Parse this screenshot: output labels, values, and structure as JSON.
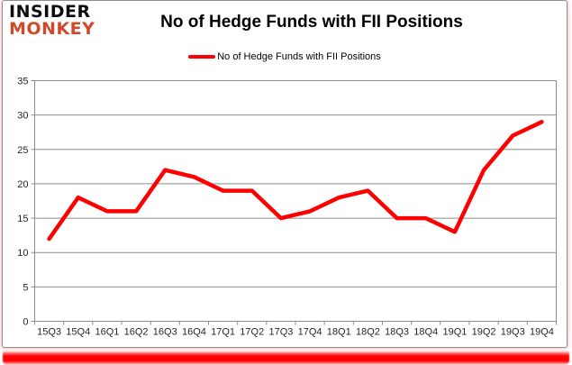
{
  "brand": {
    "line1": "INSIDER",
    "line2": "MONKEY"
  },
  "header": {
    "title": "No of Hedge Funds with FII Positions"
  },
  "legend": {
    "label": "No of Hedge Funds with FII Positions"
  },
  "colors": {
    "series_red": "#fe0000",
    "brand_red": "#cf4a2b",
    "grid_gray": "#8c8c8c",
    "axis_text": "#262626"
  },
  "chart_data": {
    "type": "line",
    "title": "No of Hedge Funds with FII Positions",
    "categories": [
      "15Q3",
      "15Q4",
      "16Q1",
      "16Q2",
      "16Q3",
      "16Q4",
      "17Q1",
      "17Q2",
      "17Q3",
      "17Q4",
      "18Q1",
      "18Q2",
      "18Q3",
      "18Q4",
      "19Q1",
      "19Q2",
      "19Q3",
      "19Q4"
    ],
    "series": [
      {
        "name": "No of Hedge Funds with FII Positions",
        "color": "#fe0000",
        "values": [
          12,
          18,
          16,
          16,
          22,
          21,
          19,
          19,
          15,
          16,
          18,
          19,
          15,
          15,
          13,
          22,
          27,
          29
        ]
      }
    ],
    "ylim": [
      0,
      35
    ],
    "yticks": [
      0,
      5,
      10,
      15,
      20,
      25,
      30,
      35
    ],
    "grid": true,
    "legend_position": "top-center",
    "xlabel": "",
    "ylabel": ""
  }
}
